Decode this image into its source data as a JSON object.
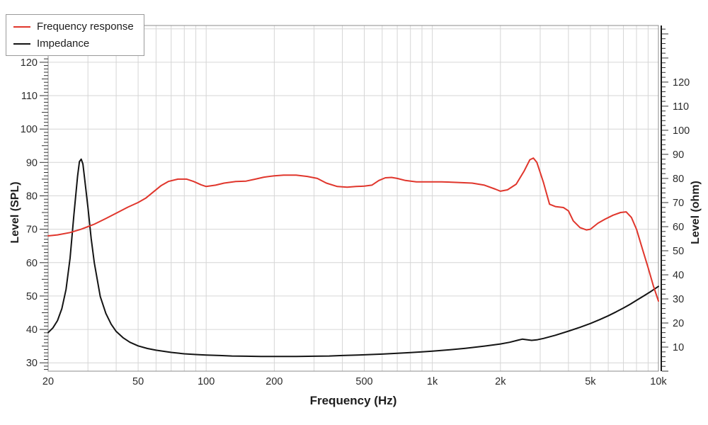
{
  "chart_data": {
    "type": "line",
    "title": "",
    "xlabel": "Frequency (Hz)",
    "ylabel_left": "Level (SPL)",
    "ylabel_right": "Level (ohm)",
    "x_scale": "log",
    "x_range": [
      20,
      10000
    ],
    "x_ticks": [
      [
        20,
        "20"
      ],
      [
        50,
        "50"
      ],
      [
        100,
        "100"
      ],
      [
        200,
        "200"
      ],
      [
        500,
        "500"
      ],
      [
        1000,
        "1k"
      ],
      [
        2000,
        "2k"
      ],
      [
        5000,
        "5k"
      ],
      [
        10000,
        "10k"
      ]
    ],
    "y_left_range": [
      27.5,
      131
    ],
    "y_left_ticks": [
      30,
      40,
      50,
      60,
      70,
      80,
      90,
      100,
      110,
      120
    ],
    "y_right_range": [
      0,
      143.5
    ],
    "y_right_ticks": [
      10,
      20,
      30,
      40,
      50,
      60,
      70,
      80,
      90,
      100,
      110,
      120
    ],
    "grid": true,
    "grid_color": "#d6d6d6",
    "border_color": "#8c8c8c",
    "tick_color": "#333333",
    "legend_position": "top-left",
    "series": [
      {
        "name": "Impedance",
        "color": "#141414",
        "axis": "right",
        "unit": "ohm",
        "points": [
          [
            20,
            16
          ],
          [
            21,
            18
          ],
          [
            22,
            21
          ],
          [
            23,
            26
          ],
          [
            24,
            34
          ],
          [
            25,
            47
          ],
          [
            26,
            65
          ],
          [
            27,
            81
          ],
          [
            27.5,
            87
          ],
          [
            28,
            88
          ],
          [
            28.5,
            86
          ],
          [
            29,
            80
          ],
          [
            30,
            68
          ],
          [
            31,
            55
          ],
          [
            32,
            45
          ],
          [
            34,
            31
          ],
          [
            36,
            24
          ],
          [
            38,
            19.5
          ],
          [
            40,
            16.5
          ],
          [
            43,
            13.8
          ],
          [
            46,
            12
          ],
          [
            50,
            10.5
          ],
          [
            55,
            9.4
          ],
          [
            60,
            8.7
          ],
          [
            70,
            7.8
          ],
          [
            80,
            7.2
          ],
          [
            90,
            6.9
          ],
          [
            100,
            6.7
          ],
          [
            115,
            6.5
          ],
          [
            130,
            6.3
          ],
          [
            150,
            6.2
          ],
          [
            175,
            6.1
          ],
          [
            200,
            6.1
          ],
          [
            250,
            6.1
          ],
          [
            300,
            6.2
          ],
          [
            350,
            6.3
          ],
          [
            400,
            6.5
          ],
          [
            500,
            6.8
          ],
          [
            600,
            7.1
          ],
          [
            700,
            7.4
          ],
          [
            800,
            7.7
          ],
          [
            900,
            8
          ],
          [
            1000,
            8.3
          ],
          [
            1200,
            8.9
          ],
          [
            1400,
            9.5
          ],
          [
            1700,
            10.4
          ],
          [
            2000,
            11.3
          ],
          [
            2200,
            12
          ],
          [
            2400,
            12.9
          ],
          [
            2500,
            13.3
          ],
          [
            2600,
            13.1
          ],
          [
            2750,
            12.8
          ],
          [
            2900,
            13
          ],
          [
            3100,
            13.6
          ],
          [
            3500,
            14.9
          ],
          [
            4000,
            16.6
          ],
          [
            4500,
            18.2
          ],
          [
            5000,
            19.8
          ],
          [
            5500,
            21.4
          ],
          [
            6000,
            23
          ],
          [
            6500,
            24.6
          ],
          [
            7000,
            26.2
          ],
          [
            7500,
            27.8
          ],
          [
            8000,
            29.4
          ],
          [
            8700,
            31.5
          ],
          [
            9300,
            33.2
          ],
          [
            10000,
            35.2
          ]
        ]
      },
      {
        "name": "Frequency response",
        "color": "#e0362c",
        "axis": "left",
        "unit": "dB SPL",
        "points": [
          [
            20,
            68
          ],
          [
            22,
            68.3
          ],
          [
            25,
            69
          ],
          [
            28,
            70
          ],
          [
            32,
            71.5
          ],
          [
            36,
            73.2
          ],
          [
            40,
            74.8
          ],
          [
            45,
            76.6
          ],
          [
            50,
            78
          ],
          [
            54,
            79.3
          ],
          [
            58,
            81
          ],
          [
            63,
            83
          ],
          [
            68,
            84.3
          ],
          [
            75,
            85
          ],
          [
            82,
            85
          ],
          [
            88,
            84.3
          ],
          [
            95,
            83.3
          ],
          [
            100,
            82.8
          ],
          [
            110,
            83.2
          ],
          [
            120,
            83.8
          ],
          [
            135,
            84.3
          ],
          [
            150,
            84.4
          ],
          [
            165,
            85
          ],
          [
            180,
            85.6
          ],
          [
            200,
            86
          ],
          [
            220,
            86.2
          ],
          [
            250,
            86.2
          ],
          [
            280,
            85.8
          ],
          [
            310,
            85.2
          ],
          [
            340,
            83.8
          ],
          [
            380,
            82.8
          ],
          [
            420,
            82.6
          ],
          [
            460,
            82.8
          ],
          [
            500,
            82.9
          ],
          [
            540,
            83.2
          ],
          [
            580,
            84.6
          ],
          [
            620,
            85.4
          ],
          [
            660,
            85.5
          ],
          [
            700,
            85.2
          ],
          [
            760,
            84.6
          ],
          [
            850,
            84.2
          ],
          [
            950,
            84.2
          ],
          [
            1100,
            84.2
          ],
          [
            1300,
            84
          ],
          [
            1500,
            83.8
          ],
          [
            1700,
            83.2
          ],
          [
            1900,
            82
          ],
          [
            2000,
            81.4
          ],
          [
            2150,
            81.8
          ],
          [
            2350,
            83.5
          ],
          [
            2550,
            87.5
          ],
          [
            2700,
            90.8
          ],
          [
            2800,
            91.3
          ],
          [
            2900,
            90
          ],
          [
            3100,
            84
          ],
          [
            3300,
            77.5
          ],
          [
            3500,
            76.8
          ],
          [
            3800,
            76.5
          ],
          [
            4000,
            75.5
          ],
          [
            4200,
            72.5
          ],
          [
            4500,
            70.5
          ],
          [
            4800,
            69.8
          ],
          [
            5000,
            70
          ],
          [
            5400,
            71.8
          ],
          [
            5800,
            73
          ],
          [
            6300,
            74.2
          ],
          [
            6800,
            75
          ],
          [
            7200,
            75.2
          ],
          [
            7600,
            73.5
          ],
          [
            8000,
            70
          ],
          [
            8500,
            64
          ],
          [
            9000,
            58.5
          ],
          [
            9500,
            53
          ],
          [
            10000,
            48.5
          ]
        ]
      }
    ]
  },
  "legend": {
    "items": [
      {
        "label": "Frequency response",
        "series_index": 1
      },
      {
        "label": "Impedance",
        "series_index": 0
      }
    ]
  }
}
